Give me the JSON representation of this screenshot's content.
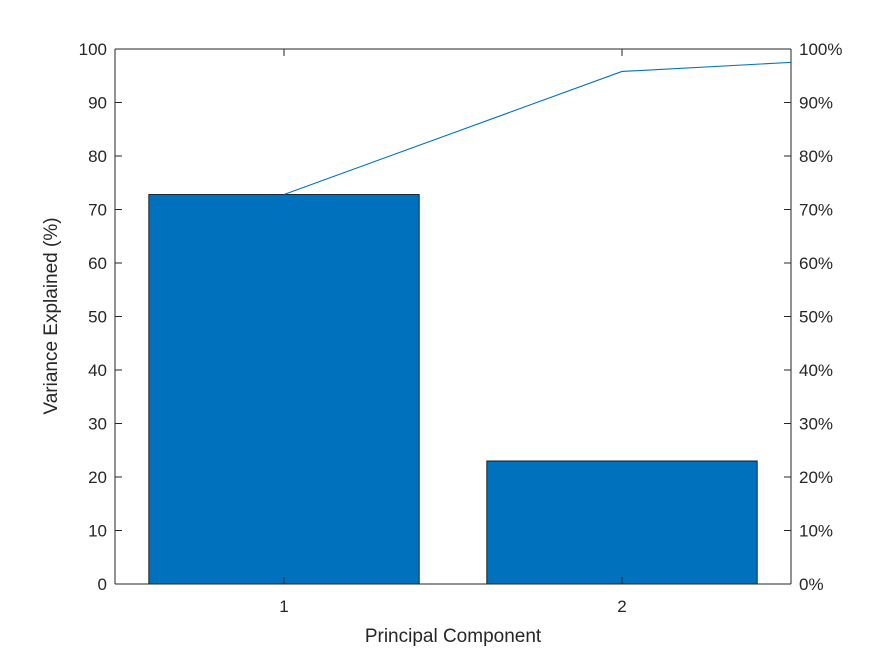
{
  "chart_data": {
    "type": "bar",
    "categories": [
      "1",
      "2"
    ],
    "values": [
      72.8,
      23.0
    ],
    "cumulative": {
      "x": [
        1,
        2,
        2.5
      ],
      "values": [
        72.8,
        95.8,
        97.5
      ]
    },
    "xlabel": "Principal Component",
    "ylabel": "Variance Explained (%)",
    "ylim": [
      0,
      100
    ],
    "xlim": [
      0.5,
      2.5
    ],
    "yticks_left": [
      "0",
      "10",
      "20",
      "30",
      "40",
      "50",
      "60",
      "70",
      "80",
      "90",
      "100"
    ],
    "yticks_right": [
      "0%",
      "10%",
      "20%",
      "30%",
      "40%",
      "50%",
      "60%",
      "70%",
      "80%",
      "90%",
      "100%"
    ],
    "bar_color": "#0072BD",
    "line_color": "#0072BD",
    "grid": false,
    "legend": "none"
  }
}
